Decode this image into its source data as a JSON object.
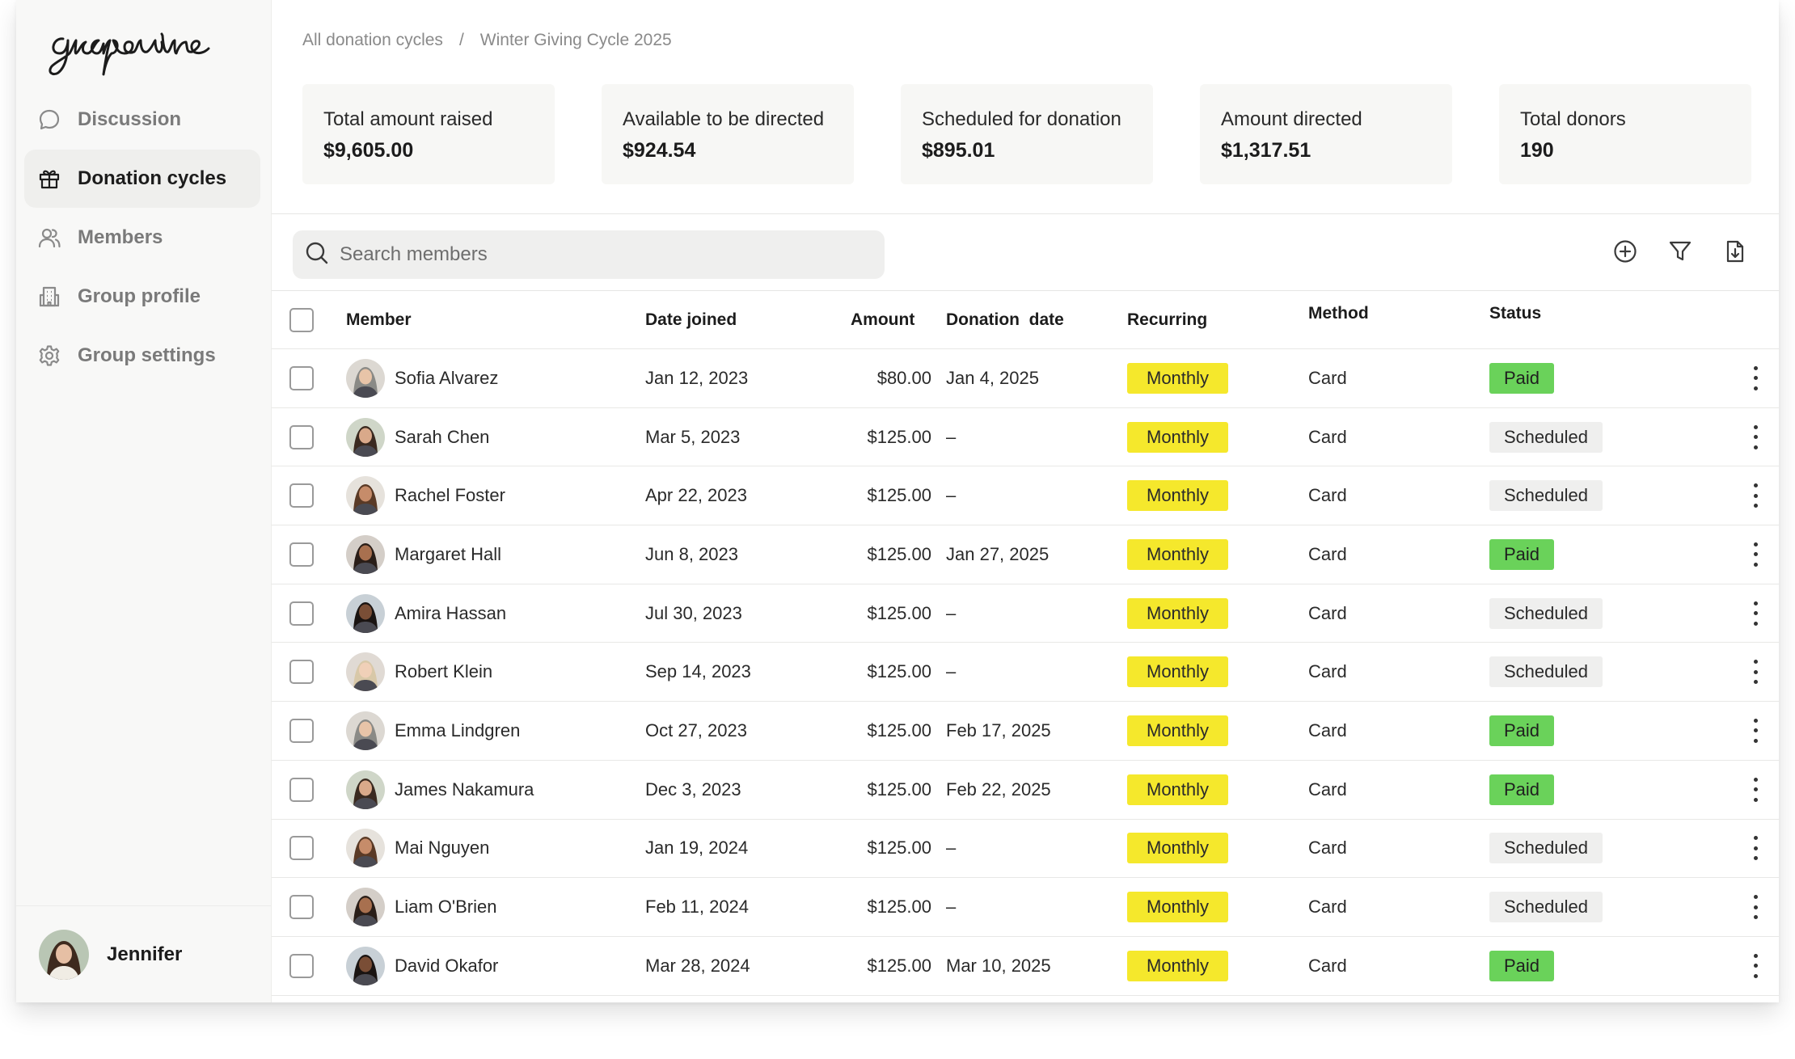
{
  "app": {
    "logo_text": "grapevine"
  },
  "sidebar": {
    "items": [
      {
        "label": "Discussion",
        "icon": "chat-bubble-icon"
      },
      {
        "label": "Donation cycles",
        "icon": "gift-icon"
      },
      {
        "label": "Members",
        "icon": "users-icon"
      },
      {
        "label": "Group profile",
        "icon": "building-icon"
      },
      {
        "label": "Group settings",
        "icon": "gear-icon"
      }
    ],
    "user": {
      "name": "Jennifer"
    }
  },
  "breadcrumb": {
    "root": "All donation cycles",
    "separator": "/",
    "current": "Winter Giving Cycle 2025"
  },
  "stats": [
    {
      "label": "Total amount raised",
      "value": "$9,605.00"
    },
    {
      "label": "Available to be directed",
      "value": "$924.54"
    },
    {
      "label": "Scheduled for donation",
      "value": "$895.01"
    },
    {
      "label": "Amount directed",
      "value": "$1,317.51"
    },
    {
      "label": "Total donors",
      "value": "190"
    }
  ],
  "search": {
    "placeholder": "Search members"
  },
  "toolbar": {
    "icons": [
      "add-circle-icon",
      "filter-icon",
      "export-icon"
    ]
  },
  "table": {
    "columns": [
      "Member",
      "Date joined",
      "Amount",
      "Donation  date",
      "Recurring",
      "Method",
      "Status"
    ],
    "rows": [
      {
        "member": "Sofia Alvarez",
        "joined": "Jan 12, 2023",
        "amount": "$80.00",
        "donation_date": "Jan 4, 2025",
        "recurring": "Monthly",
        "method": "Card",
        "status": "Paid"
      },
      {
        "member": "Sarah Chen",
        "joined": "Mar 5, 2023",
        "amount": "$125.00",
        "donation_date": "–",
        "recurring": "Monthly",
        "method": "Card",
        "status": "Scheduled"
      },
      {
        "member": "Rachel Foster",
        "joined": "Apr 22, 2023",
        "amount": "$125.00",
        "donation_date": "–",
        "recurring": "Monthly",
        "method": "Card",
        "status": "Scheduled"
      },
      {
        "member": "Margaret Hall",
        "joined": "Jun 8, 2023",
        "amount": "$125.00",
        "donation_date": "Jan 27, 2025",
        "recurring": "Monthly",
        "method": "Card",
        "status": "Paid"
      },
      {
        "member": "Amira Hassan",
        "joined": "Jul 30, 2023",
        "amount": "$125.00",
        "donation_date": "–",
        "recurring": "Monthly",
        "method": "Card",
        "status": "Scheduled"
      },
      {
        "member": "Robert Klein",
        "joined": "Sep 14, 2023",
        "amount": "$125.00",
        "donation_date": "–",
        "recurring": "Monthly",
        "method": "Card",
        "status": "Scheduled"
      },
      {
        "member": "Emma Lindgren",
        "joined": "Oct 27, 2023",
        "amount": "$125.00",
        "donation_date": "Feb 17, 2025",
        "recurring": "Monthly",
        "method": "Card",
        "status": "Paid"
      },
      {
        "member": "James Nakamura",
        "joined": "Dec 3, 2023",
        "amount": "$125.00",
        "donation_date": "Feb 22, 2025",
        "recurring": "Monthly",
        "method": "Card",
        "status": "Paid"
      },
      {
        "member": "Mai Nguyen",
        "joined": "Jan 19, 2024",
        "amount": "$125.00",
        "donation_date": "–",
        "recurring": "Monthly",
        "method": "Card",
        "status": "Scheduled"
      },
      {
        "member": "Liam O'Brien",
        "joined": "Feb 11, 2024",
        "amount": "$125.00",
        "donation_date": "–",
        "recurring": "Monthly",
        "method": "Card",
        "status": "Scheduled"
      },
      {
        "member": "David Okafor",
        "joined": "Mar 28, 2024",
        "amount": "$125.00",
        "donation_date": "Mar 10, 2025",
        "recurring": "Monthly",
        "method": "Card",
        "status": "Paid"
      }
    ]
  },
  "colors": {
    "recurring_badge": "#f5e82c",
    "paid_badge": "#6ad25a",
    "scheduled_badge": "#efefee"
  }
}
